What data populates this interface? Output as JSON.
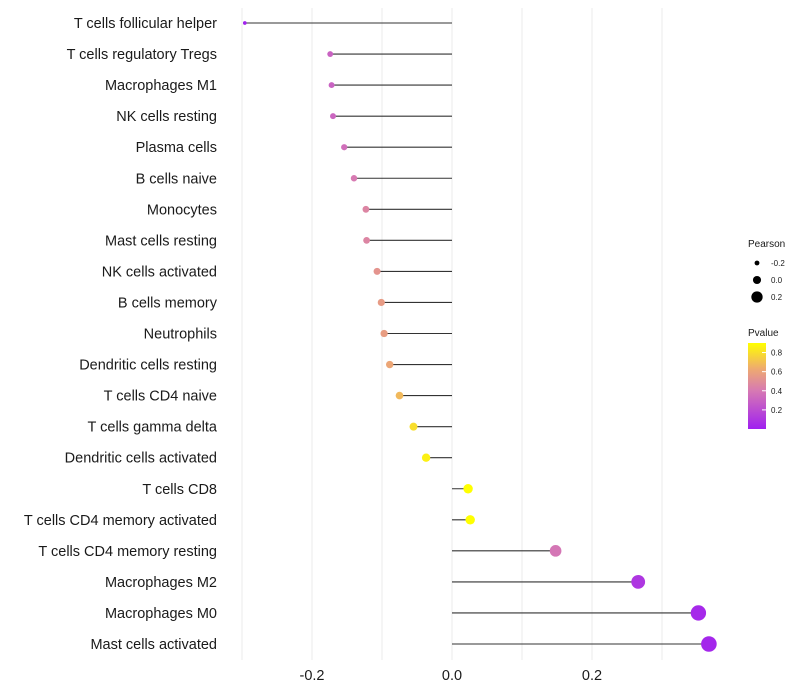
{
  "chart_data": {
    "type": "lollipop",
    "title": "",
    "xlabel": "",
    "ylabel": "",
    "xlim": [
      -0.3,
      0.37
    ],
    "x_ticks": [
      -0.2,
      0.0,
      0.2
    ],
    "x_tick_labels": [
      "-0.2",
      "0.0",
      "0.2"
    ],
    "minor_gridlines": [
      -0.3,
      -0.1,
      0.1,
      0.3
    ],
    "grid": true,
    "categories": [
      "T cells follicular helper",
      "T cells regulatory  Tregs",
      "Macrophages M1",
      "NK cells resting",
      "Plasma cells",
      "B cells naive",
      "Monocytes",
      "Mast cells resting",
      "NK cells activated",
      "B cells memory",
      "Neutrophils",
      "Dendritic cells resting",
      "T cells CD4 naive",
      "T cells gamma delta",
      "Dendritic cells activated",
      "T cells CD8",
      "T cells CD4 memory activated",
      "T cells CD4 memory resting",
      "Macrophages M2",
      "Macrophages M0",
      "Mast cells activated"
    ],
    "pearson": [
      -0.296,
      -0.174,
      -0.172,
      -0.17,
      -0.154,
      -0.14,
      -0.123,
      -0.122,
      -0.107,
      -0.101,
      -0.097,
      -0.089,
      -0.075,
      -0.055,
      -0.037,
      0.023,
      0.026,
      0.148,
      0.266,
      0.352,
      0.367
    ],
    "pvalue": [
      0.01,
      0.3,
      0.3,
      0.31,
      0.35,
      0.4,
      0.45,
      0.45,
      0.52,
      0.55,
      0.56,
      0.6,
      0.67,
      0.79,
      0.85,
      0.95,
      0.93,
      0.38,
      0.1,
      0.04,
      0.03
    ],
    "size_legend": {
      "title": "Pearson",
      "labels": [
        "-0.2",
        "0.0",
        "0.2"
      ],
      "values": [
        -0.2,
        0.0,
        0.2
      ]
    },
    "color_legend": {
      "title": "Pvalue",
      "ticks": [
        0.8,
        0.6,
        0.4,
        0.2
      ],
      "tick_labels": [
        "0.8",
        "0.6",
        "0.4",
        "0.2"
      ],
      "range": [
        0.0,
        0.9
      ],
      "low_color": "#a020f0",
      "mid_color": "#e9a07a",
      "high_color": "#ffff00"
    }
  },
  "colors": {
    "stem": "#333333",
    "grid": "#ebebeb"
  }
}
